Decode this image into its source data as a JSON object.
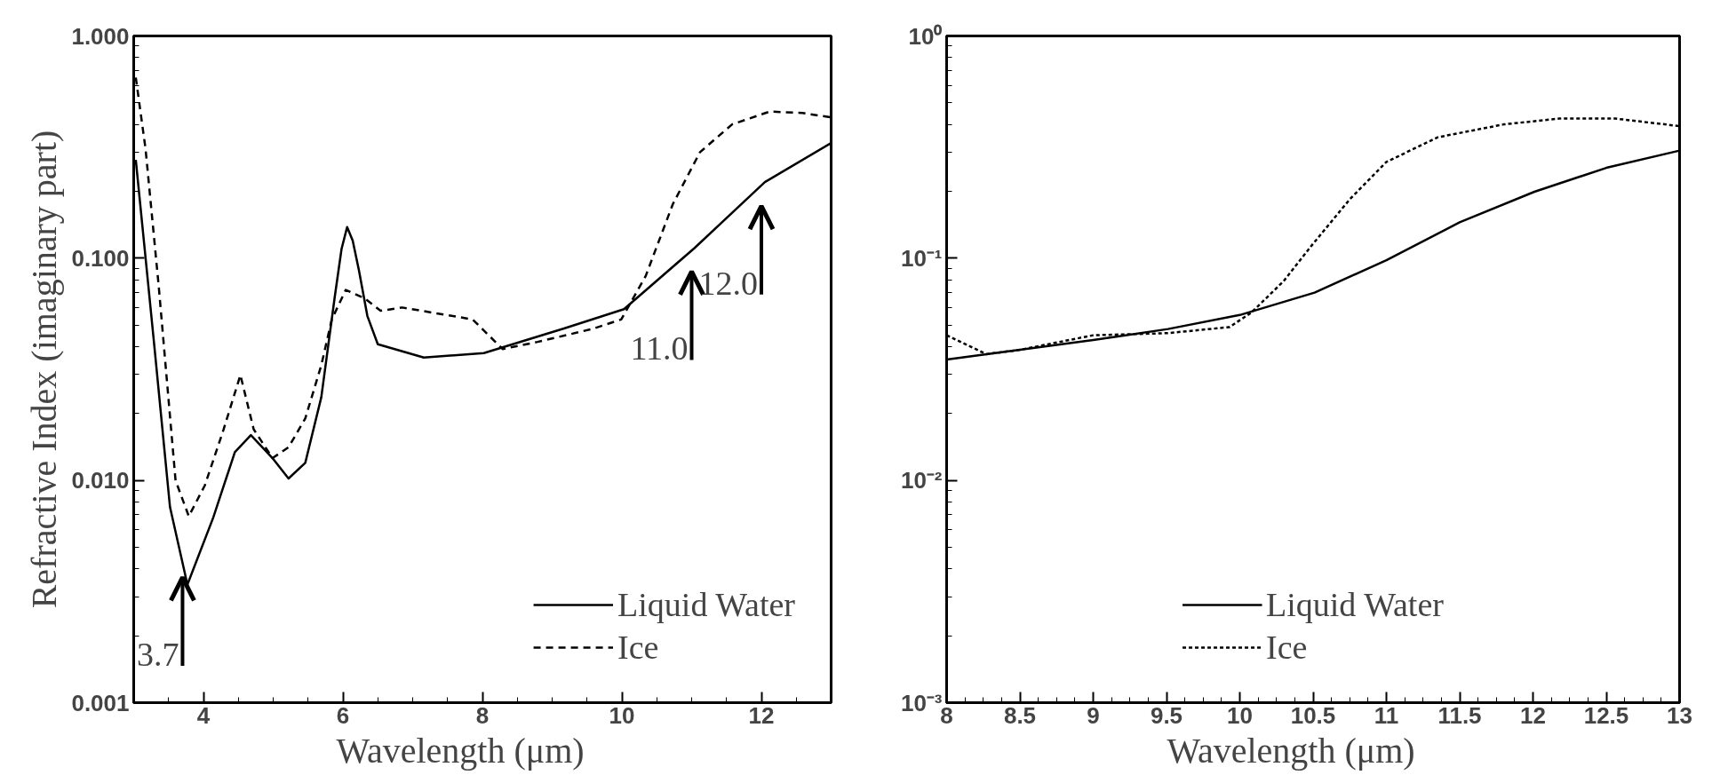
{
  "chart_data": [
    {
      "type": "line",
      "xlabel": "Wavelength      (μm)",
      "ylabel": "Refractive Index (imaginary part)",
      "log": "y",
      "xlim": [
        3,
        13
      ],
      "ylim": [
        0.001,
        1
      ],
      "xticks": [
        4,
        6,
        8,
        10,
        12
      ],
      "yticks": [
        {
          "value": 0.001,
          "label": "0.001"
        },
        {
          "value": 0.01,
          "label": "0.010"
        },
        {
          "value": 0.1,
          "label": "0.100"
        },
        {
          "value": 1,
          "label": "1.000"
        }
      ],
      "grid": false,
      "legend": "bottom right",
      "series": [
        {
          "name": "Liquid Water",
          "color": "#000000",
          "line_style": "solid",
          "x": [
            3.03,
            3.29,
            3.52,
            3.77,
            4.14,
            4.45,
            4.68,
            4.99,
            5.22,
            5.46,
            5.69,
            5.88,
            5.98,
            6.06,
            6.14,
            6.23,
            6.35,
            6.5,
            7.16,
            8.02,
            9.18,
            10.03,
            11.04,
            12.05,
            13
          ],
          "values": [
            0.277,
            0.042,
            0.0076,
            0.0034,
            0.0068,
            0.0134,
            0.016,
            0.0126,
            0.0102,
            0.012,
            0.0237,
            0.066,
            0.11,
            0.138,
            0.12,
            0.088,
            0.055,
            0.041,
            0.0357,
            0.0374,
            0.0484,
            0.059,
            0.111,
            0.22,
            0.33
          ]
        },
        {
          "name": "Ice",
          "color": "#000000",
          "line_style": "dashed",
          "x": [
            3.03,
            3.17,
            3.36,
            3.6,
            3.79,
            4.02,
            4.29,
            4.53,
            4.72,
            4.99,
            5.22,
            5.46,
            5.69,
            5.84,
            6.04,
            6.31,
            6.54,
            6.85,
            7.71,
            7.86,
            8.29,
            8.79,
            9.57,
            9.99,
            10.34,
            10.73,
            11.12,
            11.58,
            12.12,
            12.59,
            13
          ],
          "values": [
            0.65,
            0.31,
            0.074,
            0.01,
            0.0069,
            0.0095,
            0.017,
            0.0298,
            0.017,
            0.0126,
            0.0141,
            0.019,
            0.033,
            0.053,
            0.072,
            0.066,
            0.058,
            0.06,
            0.054,
            0.053,
            0.039,
            0.042,
            0.048,
            0.053,
            0.083,
            0.175,
            0.3,
            0.4,
            0.457,
            0.45,
            0.43
          ]
        }
      ],
      "ref_lines": [
        {
          "axis": "x",
          "value": 3.7,
          "label": "3.7",
          "color": "#000000"
        },
        {
          "axis": "x",
          "value": 11,
          "label": "11.0",
          "color": "#000000"
        },
        {
          "axis": "x",
          "value": 12,
          "label": "12.0",
          "color": "#000000"
        }
      ]
    },
    {
      "type": "line",
      "xlabel": "Wavelength      (μm)",
      "log": "y",
      "xlim": [
        8,
        13
      ],
      "ylim": [
        0.001,
        1
      ],
      "xticks": [
        8,
        8.5,
        9,
        9.5,
        10,
        10.5,
        11,
        11.5,
        12,
        12.5,
        13
      ],
      "yticks": [
        {
          "value": 0.001,
          "label": "10⁻³"
        },
        {
          "value": 0.01,
          "label": "10⁻²"
        },
        {
          "value": 0.1,
          "label": "10⁻¹"
        },
        {
          "value": 1,
          "label": "10⁰"
        }
      ],
      "grid": false,
      "legend": "bottom",
      "series": [
        {
          "name": "Liquid Water",
          "color": "#000000",
          "line_style": "solid",
          "x": [
            8,
            8.5,
            9,
            9.51,
            10,
            10.51,
            11,
            11.5,
            12.01,
            12.5,
            13
          ],
          "values": [
            0.035,
            0.0387,
            0.0428,
            0.048,
            0.0555,
            0.07,
            0.098,
            0.145,
            0.199,
            0.255,
            0.305
          ]
        },
        {
          "name": "Ice",
          "color": "#000000",
          "line_style": "dotted",
          "x": [
            8,
            8.27,
            8.5,
            9,
            9.51,
            9.93,
            10.08,
            10.3,
            10.49,
            10.75,
            11,
            11.35,
            11.8,
            12.18,
            12.56,
            13
          ],
          "values": [
            0.045,
            0.037,
            0.0387,
            0.045,
            0.046,
            0.049,
            0.057,
            0.079,
            0.114,
            0.184,
            0.271,
            0.35,
            0.4,
            0.425,
            0.425,
            0.393
          ]
        }
      ]
    }
  ]
}
